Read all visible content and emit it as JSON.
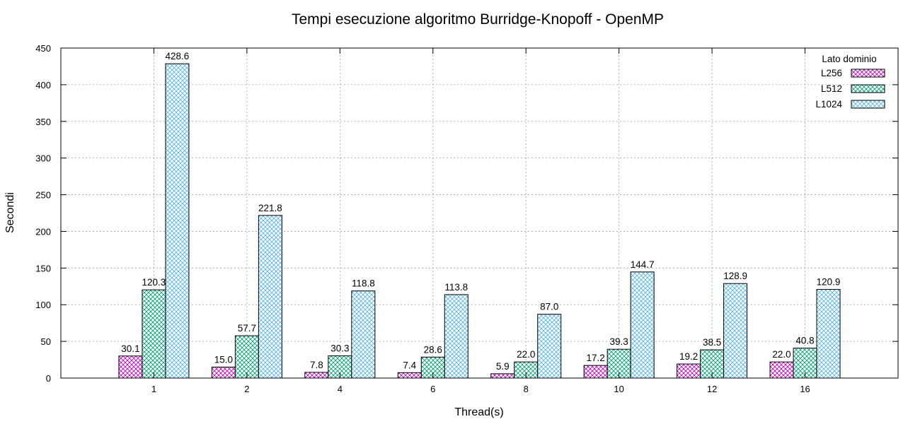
{
  "chart_data": {
    "type": "bar",
    "title": "Tempi esecuzione algoritmo Burridge-Knopoff - OpenMP",
    "xlabel": "Thread(s)",
    "ylabel": "Secondi",
    "ylim": [
      0,
      450
    ],
    "yticks": [
      0,
      50,
      100,
      150,
      200,
      250,
      300,
      350,
      400,
      450
    ],
    "grid": true,
    "categories": [
      "1",
      "2",
      "4",
      "6",
      "8",
      "10",
      "12",
      "16"
    ],
    "legend": {
      "title": "Lato dominio",
      "position": "top-right"
    },
    "series": [
      {
        "name": "L256",
        "color": "#c000c0",
        "values": [
          30.1,
          15.0,
          7.8,
          7.4,
          5.9,
          17.2,
          19.2,
          22.0
        ],
        "labels": [
          "30.1",
          "15.0",
          "7.8",
          "7.4",
          "5.9",
          "17.2",
          "19.2",
          "22.0"
        ]
      },
      {
        "name": "L512",
        "color": "#009e73",
        "values": [
          120.3,
          57.7,
          30.3,
          28.6,
          22.0,
          39.3,
          38.5,
          40.8
        ],
        "labels": [
          "120.3",
          "57.7",
          "30.3",
          "28.6",
          "22.0",
          "39.3",
          "38.5",
          "40.8"
        ]
      },
      {
        "name": "L1024",
        "color": "#56b4e9",
        "values": [
          428.6,
          221.8,
          118.8,
          113.8,
          87.0,
          144.7,
          128.9,
          120.9
        ],
        "labels": [
          "428.6",
          "221.8",
          "118.8",
          "113.8",
          "87.0",
          "144.7",
          "128.9",
          "120.9"
        ]
      }
    ]
  }
}
